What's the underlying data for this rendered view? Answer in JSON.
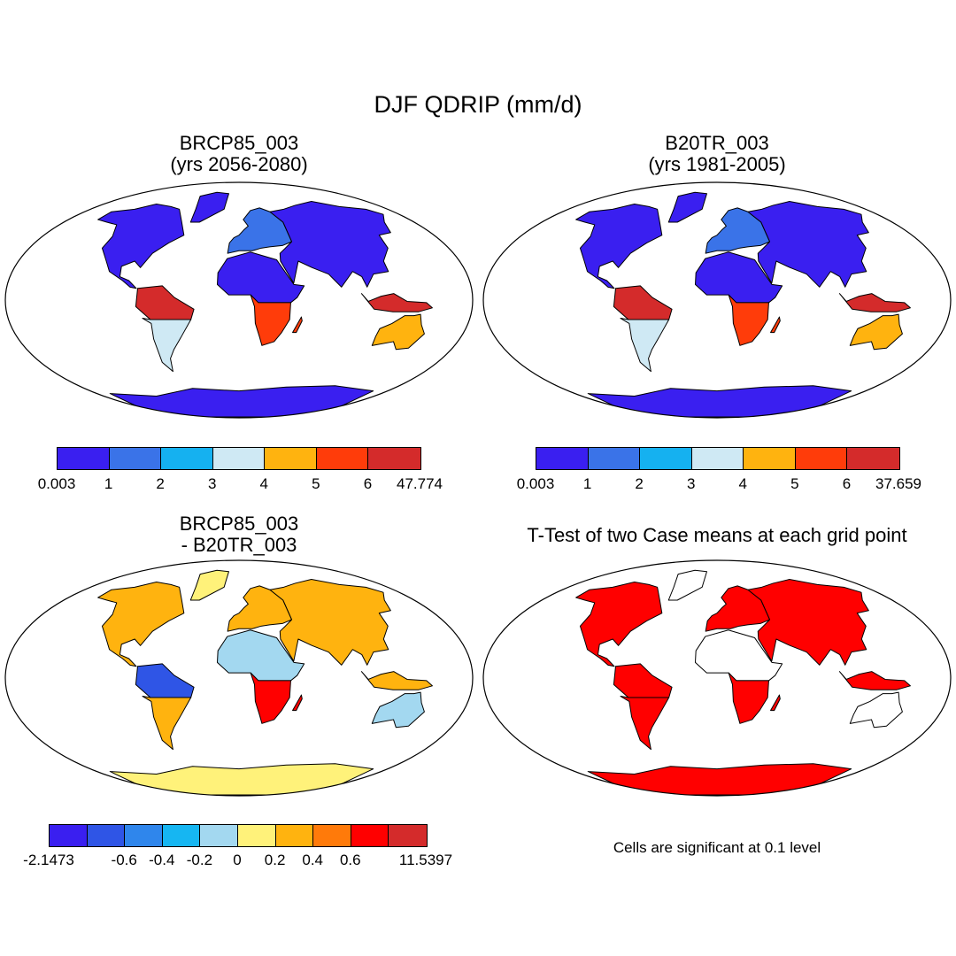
{
  "figure": {
    "title": "DJF QDRIP (mm/d)"
  },
  "panels": [
    {
      "id": "future",
      "title_line1": "BRCP85_003",
      "title_line2": "(yrs 2056-2080)",
      "type": "field",
      "colorbar": {
        "labels": [
          "0.003",
          "1",
          "2",
          "3",
          "4",
          "5",
          "6",
          "47.774"
        ],
        "colors": [
          "#3a1ff0",
          "#3a73e8",
          "#15b1f0",
          "#cfe9f4",
          "#ffb30f",
          "#ff3c0a",
          "#d42b2b"
        ]
      },
      "regions": {
        "north_america": 0,
        "greenland": 0,
        "south_america_north": 6,
        "south_america_south": 3,
        "europe": 1,
        "asia": 0,
        "africa_north": 0,
        "africa_south": 5,
        "maritime": 6,
        "australia": 4,
        "antarctica": 0
      }
    },
    {
      "id": "historical",
      "title_line1": "B20TR_003",
      "title_line2": "(yrs 1981-2005)",
      "type": "field",
      "colorbar": {
        "labels": [
          "0.003",
          "1",
          "2",
          "3",
          "4",
          "5",
          "6",
          "37.659"
        ],
        "colors": [
          "#3a1ff0",
          "#3a73e8",
          "#15b1f0",
          "#cfe9f4",
          "#ffb30f",
          "#ff3c0a",
          "#d42b2b"
        ]
      },
      "regions": {
        "north_america": 0,
        "greenland": 0,
        "south_america_north": 6,
        "south_america_south": 3,
        "europe": 1,
        "asia": 0,
        "africa_north": 0,
        "africa_south": 5,
        "maritime": 6,
        "australia": 4,
        "antarctica": 0
      }
    },
    {
      "id": "difference",
      "title_line1": "BRCP85_003",
      "title_line2": "- B20TR_003",
      "type": "field",
      "colorbar": {
        "labels": [
          "-2.1473",
          "",
          "-0.6",
          "-0.4",
          "-0.2",
          "0",
          "0.2",
          "0.4",
          "0.6",
          "",
          "11.5397"
        ],
        "colors": [
          "#3a1ff0",
          "#2f55e6",
          "#2f86ec",
          "#16b6f2",
          "#a3d8f0",
          "#fff27a",
          "#ffb30f",
          "#ff7a0a",
          "#ff0000",
          "#d42b2b"
        ]
      },
      "regions": {
        "north_america": 6,
        "greenland": 5,
        "south_america_north": 1,
        "south_america_south": 6,
        "europe": 6,
        "asia": 6,
        "africa_north": 4,
        "africa_south": 8,
        "maritime": 6,
        "australia": 4,
        "antarctica": 5
      }
    },
    {
      "id": "ttest",
      "title_line1": "T-Test of two Case means at each grid point",
      "title_line2": "",
      "type": "significance",
      "note": "Cells are significant at 0.1 level",
      "colors": [
        "#ffffff",
        "#ff0000"
      ],
      "regions": {
        "north_america": 1,
        "greenland": 0,
        "south_america_north": 1,
        "south_america_south": 1,
        "europe": 1,
        "asia": 1,
        "africa_north": 0,
        "africa_south": 1,
        "maritime": 1,
        "australia": 0,
        "antarctica": 1
      }
    }
  ]
}
